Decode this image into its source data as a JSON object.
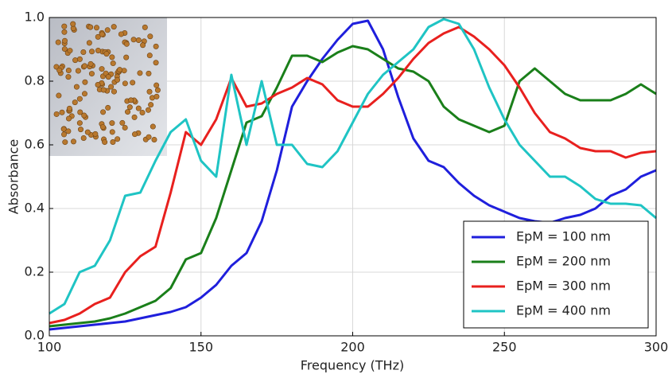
{
  "chart_data": {
    "type": "line",
    "x_label": "Frequency (THz)",
    "y_label": "Absorbance",
    "x": [
      100,
      105,
      110,
      115,
      120,
      125,
      130,
      135,
      140,
      145,
      150,
      155,
      160,
      165,
      170,
      175,
      180,
      185,
      190,
      195,
      200,
      205,
      210,
      215,
      220,
      225,
      230,
      235,
      240,
      245,
      250,
      255,
      260,
      265,
      270,
      275,
      280,
      285,
      290,
      295,
      300
    ],
    "series": [
      {
        "name": "EpM = 100 nm",
        "color": "#1f1fdc",
        "values": [
          0.02,
          0.025,
          0.03,
          0.035,
          0.04,
          0.045,
          0.055,
          0.065,
          0.075,
          0.09,
          0.12,
          0.16,
          0.22,
          0.26,
          0.36,
          0.52,
          0.72,
          0.8,
          0.87,
          0.93,
          0.98,
          0.99,
          0.9,
          0.75,
          0.62,
          0.55,
          0.53,
          0.48,
          0.44,
          0.41,
          0.39,
          0.37,
          0.36,
          0.355,
          0.37,
          0.38,
          0.4,
          0.44,
          0.46,
          0.5,
          0.52
        ]
      },
      {
        "name": "EpM = 200 nm",
        "color": "#1a7f1a",
        "values": [
          0.03,
          0.035,
          0.04,
          0.045,
          0.055,
          0.07,
          0.09,
          0.11,
          0.15,
          0.24,
          0.26,
          0.37,
          0.52,
          0.67,
          0.69,
          0.78,
          0.88,
          0.88,
          0.86,
          0.89,
          0.91,
          0.9,
          0.87,
          0.84,
          0.83,
          0.8,
          0.72,
          0.68,
          0.66,
          0.64,
          0.66,
          0.8,
          0.84,
          0.8,
          0.76,
          0.74,
          0.74,
          0.74,
          0.76,
          0.79,
          0.76
        ]
      },
      {
        "name": "EpM = 300 nm",
        "color": "#e8201e",
        "values": [
          0.04,
          0.05,
          0.07,
          0.1,
          0.12,
          0.2,
          0.25,
          0.28,
          0.45,
          0.64,
          0.6,
          0.68,
          0.81,
          0.72,
          0.73,
          0.76,
          0.78,
          0.81,
          0.79,
          0.74,
          0.72,
          0.72,
          0.76,
          0.81,
          0.87,
          0.92,
          0.95,
          0.97,
          0.94,
          0.9,
          0.85,
          0.78,
          0.7,
          0.64,
          0.62,
          0.59,
          0.58,
          0.58,
          0.56,
          0.575,
          0.58
        ]
      },
      {
        "name": "EpM = 400 nm",
        "color": "#1fc4c4",
        "values": [
          0.07,
          0.1,
          0.2,
          0.22,
          0.3,
          0.44,
          0.45,
          0.55,
          0.64,
          0.68,
          0.55,
          0.5,
          0.82,
          0.6,
          0.8,
          0.6,
          0.6,
          0.54,
          0.53,
          0.58,
          0.67,
          0.76,
          0.82,
          0.86,
          0.9,
          0.97,
          0.995,
          0.98,
          0.9,
          0.78,
          0.68,
          0.6,
          0.55,
          0.5,
          0.5,
          0.47,
          0.43,
          0.415,
          0.415,
          0.41,
          0.37
        ]
      }
    ],
    "xlim": [
      100,
      300
    ],
    "xticks": [
      100,
      150,
      200,
      250,
      300
    ],
    "ylim": [
      0,
      1
    ],
    "yticks": [
      {
        "value": 0,
        "label": "0.0"
      },
      {
        "value": 0.2,
        "label": "0.2"
      },
      {
        "value": 0.4,
        "label": "0.4"
      },
      {
        "value": 0.6,
        "label": "0.6"
      },
      {
        "value": 0.8,
        "label": "0.8"
      },
      {
        "value": 1,
        "label": "1.0"
      }
    ],
    "grid": true,
    "legend": "lower right"
  }
}
